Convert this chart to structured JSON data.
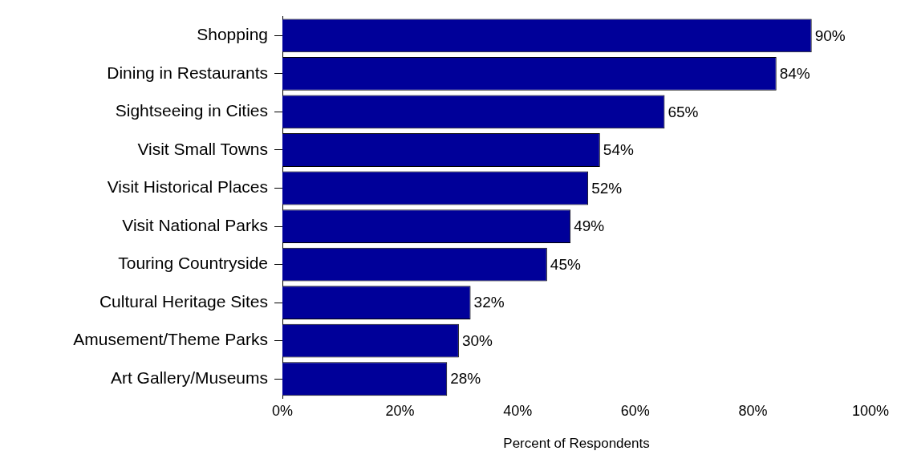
{
  "chart_data": {
    "type": "bar",
    "orientation": "horizontal",
    "xlabel": "Percent of Respondents",
    "categories": [
      "Shopping",
      "Dining in Restaurants",
      "Sightseeing in Cities",
      "Visit Small Towns",
      "Visit Historical Places",
      "Visit National Parks",
      "Touring Countryside",
      "Cultural Heritage Sites",
      "Amusement/Theme Parks",
      "Art Gallery/Museums"
    ],
    "values": [
      90,
      84,
      65,
      54,
      52,
      49,
      45,
      32,
      30,
      28
    ],
    "value_labels": [
      "90%",
      "84%",
      "65%",
      "54%",
      "52%",
      "49%",
      "45%",
      "32%",
      "30%",
      "28%"
    ],
    "color": "#000099",
    "xlim": [
      0,
      100
    ],
    "xticks": [
      {
        "value": 0,
        "label": "0%"
      },
      {
        "value": 20,
        "label": "20%"
      },
      {
        "value": 40,
        "label": "40%"
      },
      {
        "value": 60,
        "label": "60%"
      },
      {
        "value": 80,
        "label": "80%"
      },
      {
        "value": 100,
        "label": "100%"
      }
    ],
    "grid": false,
    "legend": false
  }
}
